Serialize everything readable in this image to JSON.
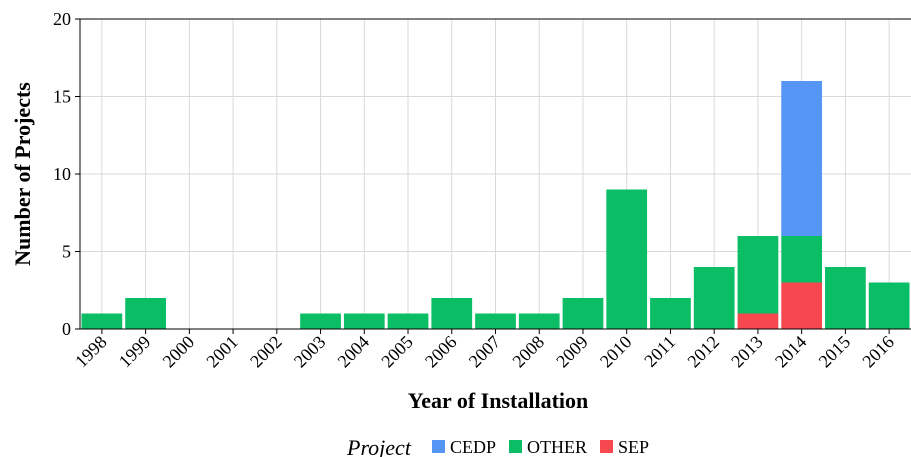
{
  "chart_data": {
    "type": "bar",
    "stacked": true,
    "xlabel": "Year of Installation",
    "ylabel": "Number of Projects",
    "legend_title": "Project",
    "categories": [
      "1998",
      "1999",
      "2000",
      "2001",
      "2002",
      "2003",
      "2004",
      "2005",
      "2006",
      "2007",
      "2008",
      "2009",
      "2010",
      "2011",
      "2012",
      "2013",
      "2014",
      "2015",
      "2016"
    ],
    "series": [
      {
        "name": "CEDP",
        "color": "#5596f5",
        "values": [
          0,
          0,
          0,
          0,
          0,
          0,
          0,
          0,
          0,
          0,
          0,
          0,
          0,
          0,
          0,
          0,
          10,
          0,
          0
        ]
      },
      {
        "name": "OTHER",
        "color": "#0bbd64",
        "values": [
          1,
          2,
          0,
          0,
          0,
          1,
          1,
          1,
          2,
          1,
          1,
          2,
          9,
          2,
          4,
          5,
          3,
          4,
          3
        ]
      },
      {
        "name": "SEP",
        "color": "#f8484f",
        "values": [
          0,
          0,
          0,
          0,
          0,
          0,
          0,
          0,
          0,
          0,
          0,
          0,
          0,
          0,
          0,
          1,
          3,
          0,
          0
        ]
      }
    ],
    "ylim": [
      0,
      20
    ],
    "yticks": [
      0,
      5,
      10,
      15,
      20
    ],
    "grid": true,
    "legend": "bottom"
  }
}
